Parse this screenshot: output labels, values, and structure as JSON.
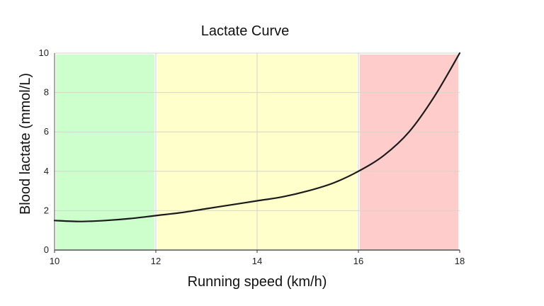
{
  "chart_data": {
    "type": "line",
    "title": "Lactate Curve",
    "xlabel": "Running speed (km/h)",
    "ylabel": "Blood lactate (mmol/L)",
    "xlim": [
      10,
      18
    ],
    "ylim": [
      0,
      10
    ],
    "xticks": [
      10,
      12,
      14,
      16,
      18
    ],
    "yticks": [
      0,
      2,
      4,
      6,
      8,
      10
    ],
    "grid": true,
    "legend": "none",
    "zones": [
      {
        "x_start": 10,
        "x_end": 12,
        "color": "#ccffcc"
      },
      {
        "x_start": 12,
        "x_end": 16,
        "color": "#ffffcc"
      },
      {
        "x_start": 16,
        "x_end": 18,
        "color": "#ffcccc"
      }
    ],
    "series": [
      {
        "color": "#1a1a1a",
        "x": [
          10,
          10.5,
          11,
          11.5,
          12,
          12.5,
          13,
          13.5,
          14,
          14.5,
          15,
          15.5,
          16,
          16.5,
          17,
          17.5,
          18
        ],
        "y": [
          1.5,
          1.45,
          1.5,
          1.6,
          1.75,
          1.9,
          2.1,
          2.3,
          2.5,
          2.7,
          3.0,
          3.4,
          4.0,
          4.8,
          6.0,
          7.8,
          10.0
        ]
      }
    ]
  }
}
